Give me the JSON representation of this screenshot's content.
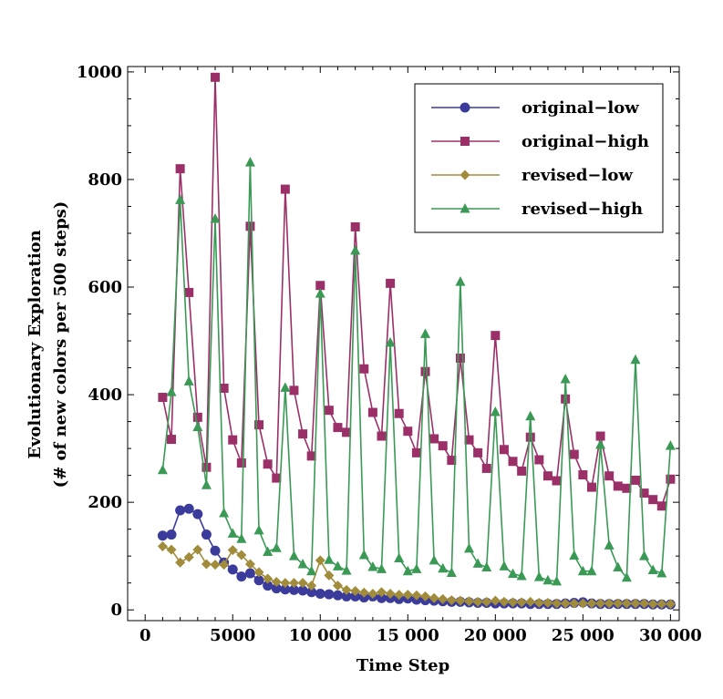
{
  "chart_data": {
    "type": "line",
    "title": "",
    "xlabel": "Time Step",
    "ylabel_line1": "Evolutionary Exploration",
    "ylabel_line2": "(# of new colors per 500 steps)",
    "xlim": [
      -1000,
      30500
    ],
    "ylim": [
      -20,
      1010
    ],
    "xticks": [
      0,
      5000,
      10000,
      15000,
      20000,
      25000,
      30000
    ],
    "xtick_labels": [
      "0",
      "5000",
      "10 000",
      "15 000",
      "20 000",
      "25 000",
      "30 000"
    ],
    "yticks": [
      0,
      200,
      400,
      600,
      800,
      1000
    ],
    "ytick_labels": [
      "0",
      "200",
      "400",
      "600",
      "800",
      "1000"
    ],
    "x": [
      1000,
      1500,
      2000,
      2500,
      3000,
      3500,
      4000,
      4500,
      5000,
      5500,
      6000,
      6500,
      7000,
      7500,
      8000,
      8500,
      9000,
      9500,
      10000,
      10500,
      11000,
      11500,
      12000,
      12500,
      13000,
      13500,
      14000,
      14500,
      15000,
      15500,
      16000,
      16500,
      17000,
      17500,
      18000,
      18500,
      19000,
      19500,
      20000,
      20500,
      21000,
      21500,
      22000,
      22500,
      23000,
      23500,
      24000,
      24500,
      25000,
      25500,
      26000,
      26500,
      27000,
      27500,
      28000,
      28500,
      29000,
      29500,
      30000
    ],
    "legend_position": "top-right",
    "series": [
      {
        "name": "original−low",
        "color": "#3b3b9b",
        "marker": "circle",
        "values": [
          138,
          140,
          185,
          188,
          178,
          140,
          110,
          88,
          75,
          62,
          68,
          55,
          45,
          40,
          38,
          37,
          36,
          33,
          30,
          29,
          27,
          25,
          25,
          23,
          25,
          22,
          22,
          20,
          21,
          19,
          18,
          17,
          16,
          15,
          15,
          14,
          13,
          13,
          12,
          12,
          12,
          12,
          11,
          11,
          11,
          11,
          12,
          13,
          14,
          12,
          11,
          11,
          11,
          11,
          11,
          11,
          10,
          10,
          10
        ]
      },
      {
        "name": "original−high",
        "color": "#9b3069",
        "marker": "square",
        "values": [
          395,
          317,
          820,
          590,
          358,
          265,
          990,
          412,
          316,
          273,
          713,
          344,
          271,
          245,
          782,
          408,
          327,
          286,
          603,
          371,
          339,
          330,
          712,
          448,
          367,
          323,
          607,
          365,
          332,
          292,
          443,
          318,
          305,
          278,
          468,
          316,
          292,
          263,
          510,
          298,
          276,
          258,
          321,
          279,
          249,
          240,
          392,
          289,
          251,
          228,
          323,
          249,
          230,
          226,
          241,
          217,
          205,
          193,
          243
        ]
      },
      {
        "name": "revised−low",
        "color": "#a08c3a",
        "marker": "diamond",
        "values": [
          118,
          112,
          88,
          98,
          112,
          85,
          84,
          84,
          111,
          102,
          85,
          70,
          58,
          52,
          50,
          50,
          50,
          45,
          92,
          64,
          45,
          37,
          35,
          32,
          30,
          33,
          30,
          28,
          28,
          27,
          25,
          22,
          20,
          18,
          17,
          16,
          15,
          15,
          17,
          15,
          14,
          14,
          15,
          13,
          13,
          12,
          12,
          12,
          12,
          12,
          12,
          12,
          12,
          12,
          12,
          12,
          11,
          11,
          11
        ]
      },
      {
        "name": "revised−high",
        "color": "#3a9a55",
        "marker": "triangle",
        "values": [
          260,
          405,
          762,
          425,
          340,
          232,
          727,
          180,
          142,
          132,
          832,
          148,
          108,
          115,
          413,
          100,
          85,
          72,
          588,
          93,
          81,
          73,
          668,
          102,
          80,
          76,
          497,
          96,
          72,
          76,
          513,
          92,
          77,
          69,
          610,
          114,
          86,
          79,
          368,
          81,
          67,
          63,
          360,
          61,
          55,
          53,
          429,
          101,
          72,
          72,
          307,
          120,
          79,
          60,
          465,
          100,
          74,
          68,
          305
        ]
      }
    ]
  }
}
